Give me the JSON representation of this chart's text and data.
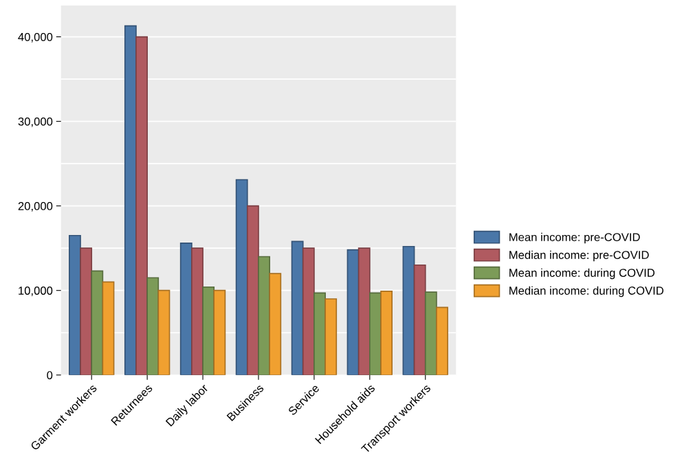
{
  "chart_data": {
    "type": "bar",
    "categories": [
      "Garment workers",
      "Returnees",
      "Daily labor",
      "Business",
      "Service",
      "Household aids",
      "Transport workers"
    ],
    "series": [
      {
        "name": "Mean income: pre-COVID",
        "color": "#4a77a8",
        "values": [
          16500,
          41300,
          15600,
          23100,
          15800,
          14800,
          15200
        ]
      },
      {
        "name": "Median income: pre-COVID",
        "color": "#b05a60",
        "values": [
          15000,
          40000,
          15000,
          20000,
          15000,
          15000,
          13000
        ]
      },
      {
        "name": "Mean income: during COVID",
        "color": "#7c9b58",
        "values": [
          12300,
          11500,
          10400,
          14000,
          9700,
          9700,
          9800
        ]
      },
      {
        "name": "Median income: during COVID",
        "color": "#f0a030",
        "values": [
          11000,
          10000,
          10000,
          12000,
          9000,
          9900,
          8000
        ]
      }
    ],
    "ylim": [
      0,
      43700
    ],
    "yticks": [
      {
        "value": 0,
        "label": "0"
      },
      {
        "value": 5000,
        "label": null
      },
      {
        "value": 10000,
        "label": "10,000"
      },
      {
        "value": 15000,
        "label": null
      },
      {
        "value": 20000,
        "label": "20,000"
      },
      {
        "value": 25000,
        "label": null
      },
      {
        "value": 30000,
        "label": "30,000"
      },
      {
        "value": 35000,
        "label": null
      },
      {
        "value": 40000,
        "label": "40,000"
      }
    ],
    "grid": "y",
    "legend": "right"
  }
}
